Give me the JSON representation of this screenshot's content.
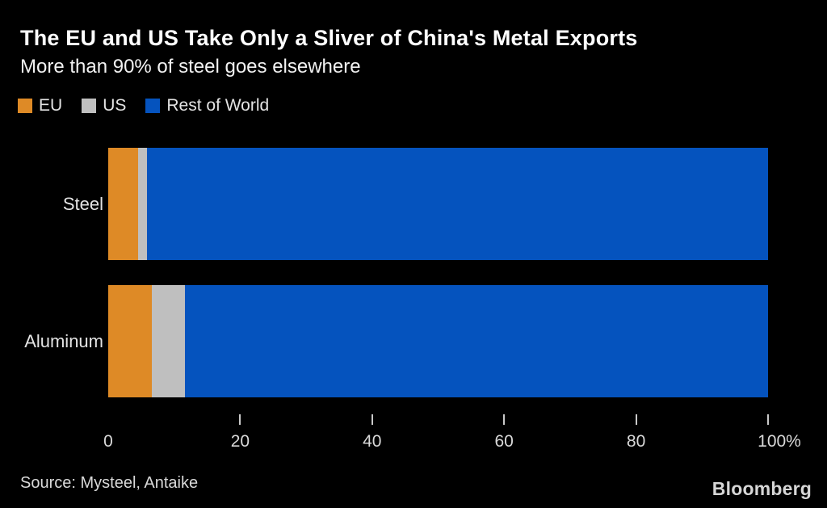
{
  "header": {
    "title": "The EU and US Take Only a Sliver of China's Metal Exports",
    "subtitle": "More than 90% of steel goes elsewhere"
  },
  "legend": [
    {
      "label": "EU",
      "color": "#de8a26"
    },
    {
      "label": "US",
      "color": "#bfbfbf"
    },
    {
      "label": "Rest of World",
      "color": "#0553be"
    }
  ],
  "chart_data": {
    "type": "bar",
    "orientation": "horizontal",
    "stacked": true,
    "title": "The EU and US Take Only a Sliver of China's Metal Exports",
    "subtitle": "More than 90% of steel goes elsewhere",
    "categories": [
      "Steel",
      "Aluminum"
    ],
    "series": [
      {
        "name": "EU",
        "color": "#de8a26",
        "values": [
          4.5,
          6.6
        ]
      },
      {
        "name": "US",
        "color": "#bfbfbf",
        "values": [
          1.4,
          5.0
        ]
      },
      {
        "name": "Rest of World",
        "color": "#0553be",
        "values": [
          94.1,
          88.4
        ]
      }
    ],
    "unit": "%",
    "xlim": [
      0,
      100
    ],
    "x_ticks": [
      {
        "value": 0,
        "label": "0",
        "mark": false
      },
      {
        "value": 20,
        "label": "20",
        "mark": true
      },
      {
        "value": 40,
        "label": "40",
        "mark": true
      },
      {
        "value": 60,
        "label": "60",
        "mark": true
      },
      {
        "value": 80,
        "label": "80",
        "mark": true
      },
      {
        "value": 100,
        "label": "100%",
        "mark": true
      }
    ],
    "grid": false,
    "legend_position": "top"
  },
  "footer": {
    "source": "Source: Mysteel, Antaike",
    "brand": "Bloomberg"
  }
}
